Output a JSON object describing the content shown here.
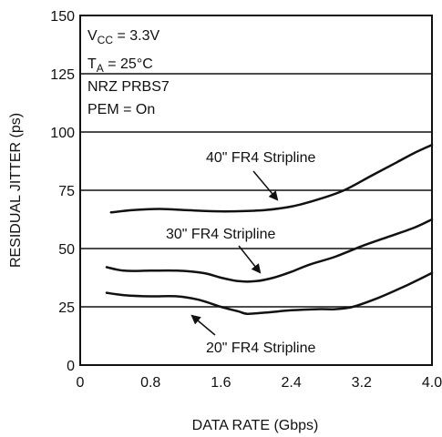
{
  "chart_data": {
    "type": "line",
    "title": "",
    "xlabel": "DATA RATE (Gbps)",
    "ylabel": "RESIDUAL JITTER (ps)",
    "xlim": [
      0,
      4.0
    ],
    "ylim": [
      0,
      150
    ],
    "xticks": [
      "0",
      "0.8",
      "1.6",
      "2.4",
      "3.2",
      "4.0"
    ],
    "yticks": [
      "0",
      "25",
      "50",
      "75",
      "100",
      "125",
      "150"
    ],
    "grid": "horizontal",
    "annotations": [
      {
        "main": "V",
        "sub": "CC",
        "rest": " = 3.3V"
      },
      {
        "main": "T",
        "sub": "A",
        "rest": " = 25°C"
      },
      {
        "main": "NRZ PRBS7",
        "sub": "",
        "rest": ""
      },
      {
        "main": "PEM = On",
        "sub": "",
        "rest": ""
      }
    ],
    "series": [
      {
        "name": "40\" FR4 Stripline",
        "x": [
          0.35,
          0.6,
          0.9,
          1.2,
          1.5,
          1.8,
          2.1,
          2.4,
          2.7,
          3.0,
          3.3,
          3.6,
          3.8,
          4.0
        ],
        "y": [
          65.5,
          66.5,
          67,
          66.5,
          66,
          66,
          66.5,
          68,
          71,
          75,
          81,
          87,
          91,
          94.5
        ]
      },
      {
        "name": "30\" FR4 Stripline",
        "x": [
          0.3,
          0.5,
          0.8,
          1.1,
          1.4,
          1.6,
          1.8,
          2.0,
          2.2,
          2.4,
          2.6,
          2.9,
          3.2,
          3.5,
          3.8,
          4.0
        ],
        "y": [
          42,
          40.5,
          40.5,
          40.5,
          39.5,
          37.5,
          36,
          36,
          37.5,
          40,
          43,
          46.5,
          51,
          55,
          59,
          62.5
        ]
      },
      {
        "name": "20\" FR4 Stripline",
        "x": [
          0.3,
          0.5,
          0.8,
          1.1,
          1.35,
          1.6,
          1.8,
          1.9,
          2.1,
          2.4,
          2.7,
          2.9,
          3.1,
          3.4,
          3.7,
          4.0
        ],
        "y": [
          31,
          30,
          29.5,
          29.5,
          28,
          25,
          23,
          22,
          22.5,
          23.5,
          24,
          24,
          25,
          29,
          34,
          39.5
        ]
      }
    ]
  }
}
